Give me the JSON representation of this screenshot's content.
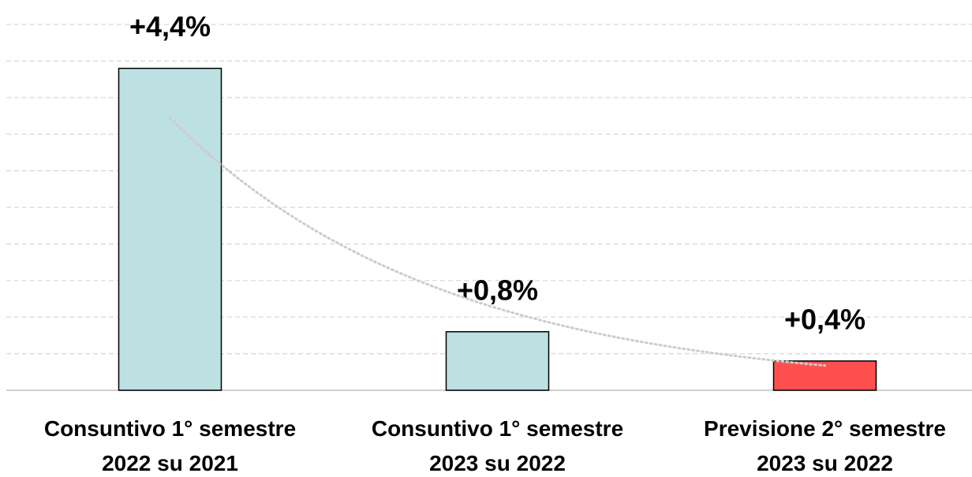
{
  "chart_data": {
    "type": "bar",
    "categories": [
      "Consuntivo 1° semestre\n2022 su 2021",
      "Consuntivo 1° semestre\n2023 su 2022",
      "Previsione 2° semestre\n2023 su 2022"
    ],
    "values": [
      4.4,
      0.8,
      0.4
    ],
    "value_labels": [
      "+4,4%",
      "+0,8%",
      "+0,4%"
    ],
    "colors": [
      "#bde0e3",
      "#bde0e3",
      "#ff5050"
    ],
    "ylim": [
      0,
      5
    ],
    "yticks": [
      0,
      0.5,
      1,
      1.5,
      2,
      2.5,
      3,
      3.5,
      4,
      4.5,
      5
    ],
    "grid": true,
    "trendline": "exponential"
  }
}
